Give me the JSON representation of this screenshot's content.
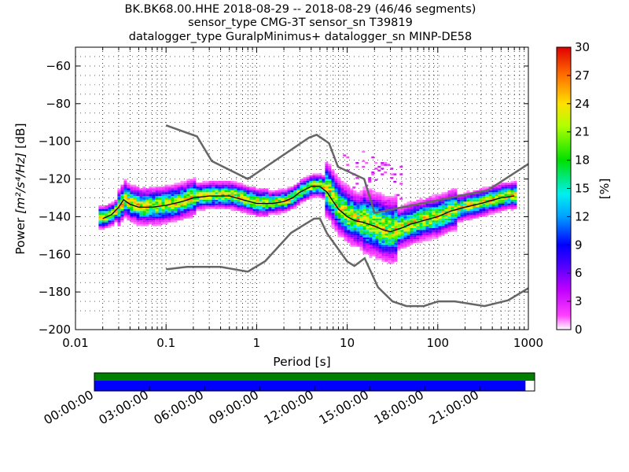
{
  "title": {
    "line1": "BK.BK68.00.HHE   2018-08-29 -- 2018-08-29  (46/46 segments)",
    "line2": "sensor_type CMG-3T sensor_sn T39819",
    "line3": "datalogger_type GuralpMinimus+ datalogger_sn MINP-DE58"
  },
  "chart_data": {
    "type": "heatmap",
    "xlabel": "Period [s]",
    "ylabel_prefix": "Power ",
    "ylabel_math": "[m²/s⁴/Hz]",
    "ylabel_suffix": " [dB]",
    "xscale": "log",
    "xlim": [
      0.01,
      1000
    ],
    "ylim": [
      -200,
      -50
    ],
    "x_ticks": [
      {
        "v": 0.01,
        "label": "0.01"
      },
      {
        "v": 0.1,
        "label": "0.1"
      },
      {
        "v": 1,
        "label": "1"
      },
      {
        "v": 10,
        "label": "10"
      },
      {
        "v": 100,
        "label": "100"
      },
      {
        "v": 1000,
        "label": "1000"
      }
    ],
    "y_ticks": [
      {
        "v": -60,
        "label": "−60"
      },
      {
        "v": -80,
        "label": "−80"
      },
      {
        "v": -100,
        "label": "−100"
      },
      {
        "v": -120,
        "label": "−120"
      },
      {
        "v": -140,
        "label": "−140"
      },
      {
        "v": -160,
        "label": "−160"
      },
      {
        "v": -180,
        "label": "−180"
      },
      {
        "v": -200,
        "label": "−200"
      }
    ],
    "colorbar": {
      "label": "[%]",
      "range": [
        0,
        30
      ],
      "ticks": [
        {
          "v": 0,
          "label": "0"
        },
        {
          "v": 3,
          "label": "3"
        },
        {
          "v": 6,
          "label": "6"
        },
        {
          "v": 9,
          "label": "9"
        },
        {
          "v": 12,
          "label": "12"
        },
        {
          "v": 15,
          "label": "15"
        },
        {
          "v": 18,
          "label": "18"
        },
        {
          "v": 21,
          "label": "21"
        },
        {
          "v": 24,
          "label": "24"
        },
        {
          "v": 27,
          "label": "27"
        },
        {
          "v": 30,
          "label": "30"
        }
      ]
    },
    "nhnm": [
      [
        0.1,
        -91.5
      ],
      [
        0.22,
        -97.4
      ],
      [
        0.32,
        -110.5
      ],
      [
        0.8,
        -120
      ],
      [
        3.8,
        -98
      ],
      [
        4.6,
        -96.5
      ],
      [
        6.3,
        -101
      ],
      [
        7.9,
        -113.5
      ],
      [
        15.4,
        -120
      ],
      [
        20,
        -138
      ],
      [
        354.8,
        -126
      ],
      [
        1000,
        -112
      ]
    ],
    "nlnm": [
      [
        0.1,
        -168
      ],
      [
        0.17,
        -166.7
      ],
      [
        0.4,
        -166.7
      ],
      [
        0.8,
        -169.2
      ],
      [
        1.24,
        -163.7
      ],
      [
        2.4,
        -148.6
      ],
      [
        4.3,
        -141.1
      ],
      [
        5,
        -141
      ],
      [
        6,
        -149
      ],
      [
        10,
        -163.8
      ],
      [
        12,
        -166.2
      ],
      [
        15.6,
        -162.1
      ],
      [
        21.9,
        -177.5
      ],
      [
        31.6,
        -185
      ],
      [
        45,
        -187.5
      ],
      [
        70,
        -187.5
      ],
      [
        101,
        -185
      ],
      [
        154,
        -185
      ],
      [
        328,
        -187.5
      ],
      [
        600,
        -184.4
      ],
      [
        1000,
        -178
      ]
    ],
    "median": [
      [
        0.02,
        -141
      ],
      [
        0.025,
        -139
      ],
      [
        0.03,
        -135
      ],
      [
        0.034,
        -131
      ],
      [
        0.04,
        -133.5
      ],
      [
        0.05,
        -135
      ],
      [
        0.07,
        -135
      ],
      [
        0.1,
        -134
      ],
      [
        0.15,
        -132
      ],
      [
        0.2,
        -130
      ],
      [
        0.3,
        -129
      ],
      [
        0.5,
        -129
      ],
      [
        0.7,
        -131
      ],
      [
        1,
        -133
      ],
      [
        1.5,
        -133
      ],
      [
        2,
        -132
      ],
      [
        2.5,
        -130
      ],
      [
        3,
        -127
      ],
      [
        4,
        -124
      ],
      [
        5,
        -124
      ],
      [
        6,
        -127
      ],
      [
        7,
        -132
      ],
      [
        8,
        -136
      ],
      [
        10,
        -140
      ],
      [
        12,
        -142
      ],
      [
        15,
        -143
      ],
      [
        20,
        -145
      ],
      [
        25,
        -147
      ],
      [
        30,
        -148
      ],
      [
        40,
        -146
      ],
      [
        50,
        -144
      ],
      [
        70,
        -142
      ],
      [
        100,
        -140
      ],
      [
        140,
        -137
      ],
      [
        200,
        -135
      ],
      [
        300,
        -133
      ],
      [
        500,
        -130
      ],
      [
        700,
        -129
      ]
    ],
    "segment_times_hours": [
      0,
      23.5
    ],
    "time_ticks": [
      {
        "h": 0,
        "label": "00:00:00"
      },
      {
        "h": 3,
        "label": "03:00:00"
      },
      {
        "h": 6,
        "label": "06:00:00"
      },
      {
        "h": 9,
        "label": "09:00:00"
      },
      {
        "h": 12,
        "label": "12:00:00"
      },
      {
        "h": 15,
        "label": "15:00:00"
      },
      {
        "h": 18,
        "label": "18:00:00"
      },
      {
        "h": 21,
        "label": "21:00:00"
      }
    ],
    "colors": {
      "grid": "#000000",
      "noise_model": "#666666",
      "median": "#000000",
      "data_coverage": "#008000",
      "segment_coverage": "#0000ff"
    }
  }
}
